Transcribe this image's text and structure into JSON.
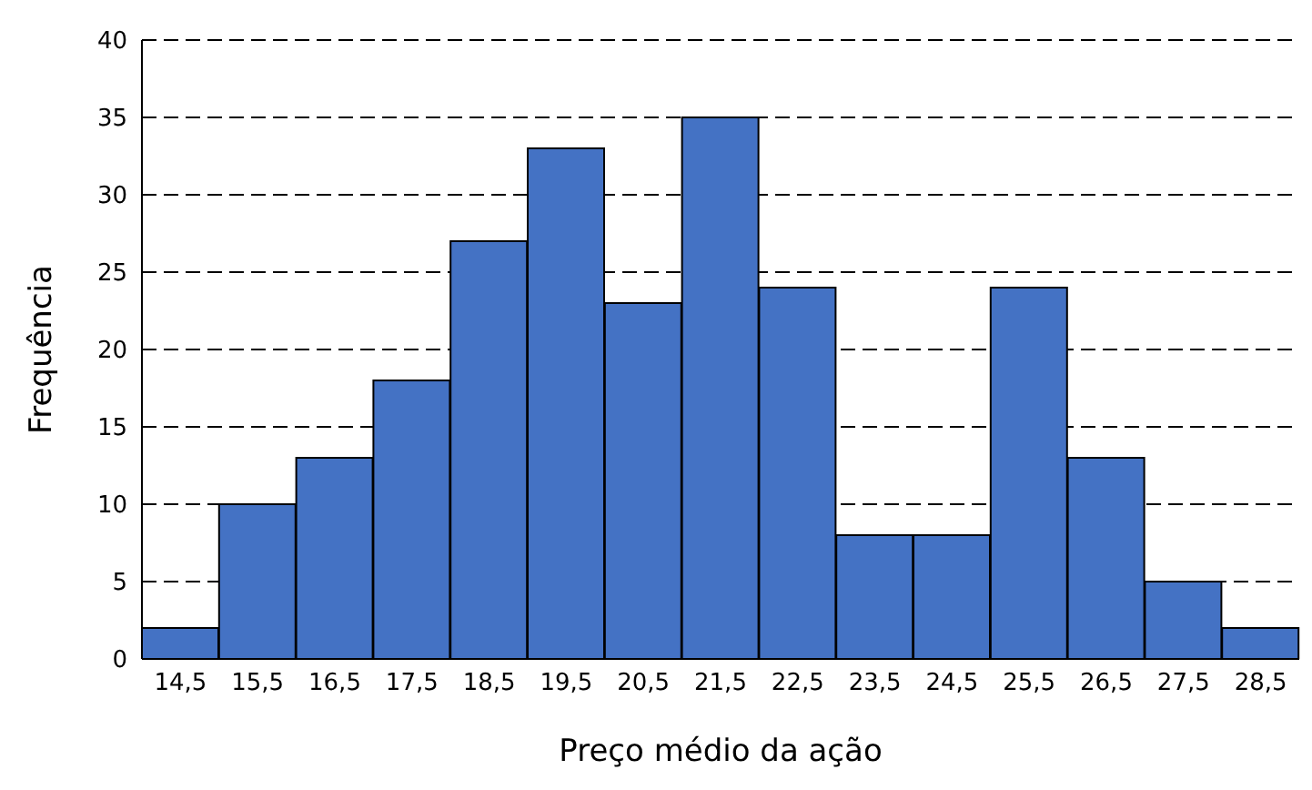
{
  "chart_data": {
    "type": "bar",
    "xlabel": "Preço médio da ação",
    "ylabel": "Frequência",
    "categories": [
      "14,5",
      "15,5",
      "16,5",
      "17,5",
      "18,5",
      "19,5",
      "20,5",
      "21,5",
      "22,5",
      "23,5",
      "24,5",
      "25,5",
      "26,5",
      "27,5",
      "28,5"
    ],
    "values": [
      2,
      10,
      13,
      18,
      27,
      33,
      23,
      35,
      24,
      8,
      8,
      24,
      13,
      5,
      2
    ],
    "color": "#4472c4",
    "ylim": [
      0,
      40
    ],
    "yticks": [
      0,
      5,
      10,
      15,
      20,
      25,
      30,
      35,
      40
    ],
    "grid": "y"
  }
}
